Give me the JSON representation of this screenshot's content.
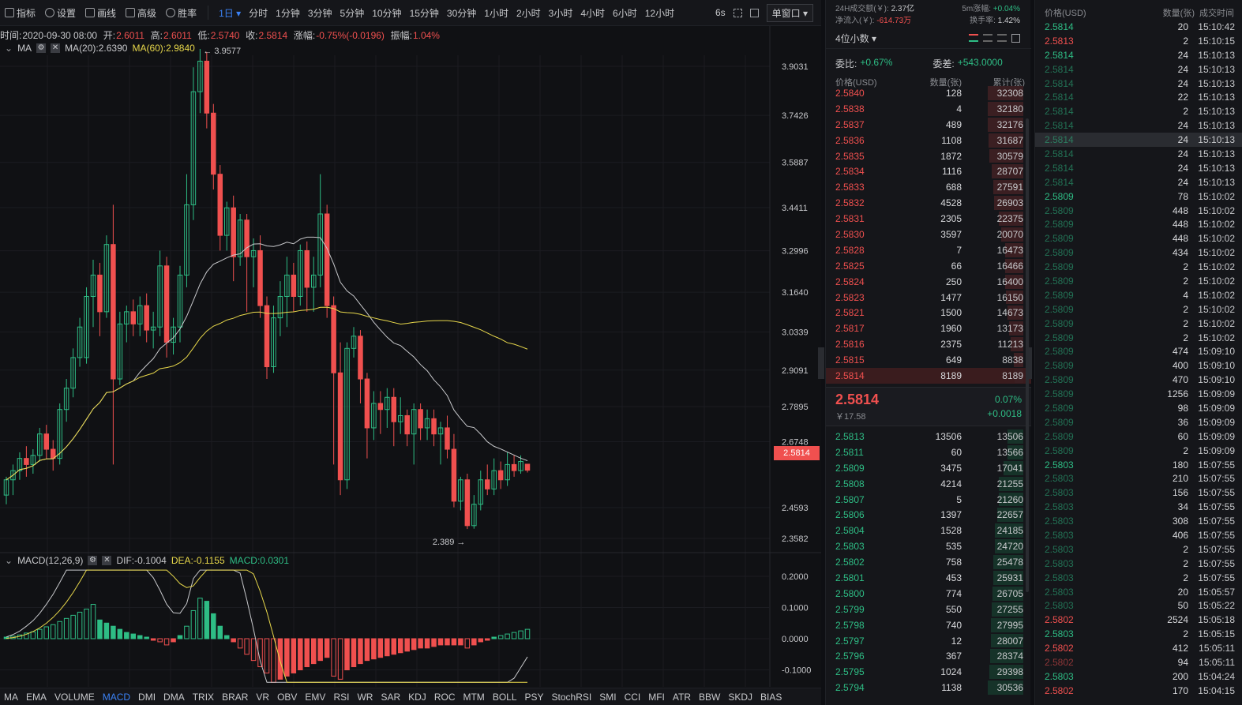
{
  "toolbar": {
    "indicator_label": "指标",
    "settings_label": "设置",
    "draw_label": "画线",
    "advanced_label": "高级",
    "winrate_label": "胜率",
    "intervals": [
      "1日",
      "分时",
      "1分钟",
      "3分钟",
      "5分钟",
      "10分钟",
      "15分钟",
      "30分钟",
      "1小时",
      "2小时",
      "3小时",
      "4小时",
      "6小时",
      "12小时"
    ],
    "active_interval": "1日",
    "refresh_label": "6s",
    "window_select": "单窗口"
  },
  "info": {
    "time_label": "时间:",
    "time": "2020-09-30 08:00",
    "open_label": "开:",
    "open": "2.6011",
    "high_label": "高:",
    "high": "2.6011",
    "low_label": "低:",
    "low": "2.5740",
    "close_label": "收:",
    "close": "2.5814",
    "change_label": "涨幅:",
    "change": "-0.75%(-0.0196)",
    "amplitude_label": "振幅:",
    "amplitude": "1.04%"
  },
  "ma": {
    "label": "MA",
    "ma20": "MA(20):2.6390",
    "ma60": "MA(60):2.9840"
  },
  "macd": {
    "label": "MACD(12,26,9)",
    "dif": "DIF:-0.1004",
    "dea": "DEA:-0.1155",
    "macd": "MACD:0.0301"
  },
  "chart_data": {
    "type": "candlestick",
    "y_ticks": [
      "3.9031",
      "3.7426",
      "3.5887",
      "3.4411",
      "3.2996",
      "3.1640",
      "3.0339",
      "2.9091",
      "2.7895",
      "2.6748",
      "2.4593",
      "2.3582"
    ],
    "high_marker": "3.9577",
    "low_marker": "2.389",
    "current_price": "2.5814",
    "macd_ticks": [
      "0.2000",
      "0.1000",
      "0.0000",
      "-0.1000"
    ],
    "candles": [
      [
        2.5,
        2.55,
        2.47,
        2.56
      ],
      [
        2.55,
        2.58,
        2.5,
        2.6
      ],
      [
        2.58,
        2.62,
        2.55,
        2.64
      ],
      [
        2.62,
        2.6,
        2.56,
        2.66
      ],
      [
        2.6,
        2.63,
        2.57,
        2.65
      ],
      [
        2.63,
        2.7,
        2.61,
        2.72
      ],
      [
        2.7,
        2.65,
        2.62,
        2.73
      ],
      [
        2.65,
        2.62,
        2.58,
        2.68
      ],
      [
        2.62,
        2.78,
        2.6,
        2.8
      ],
      [
        2.78,
        2.85,
        2.74,
        2.88
      ],
      [
        2.85,
        2.95,
        2.82,
        2.98
      ],
      [
        2.95,
        3.05,
        2.92,
        3.08
      ],
      [
        2.95,
        3.15,
        2.93,
        3.18
      ],
      [
        3.15,
        3.22,
        3.05,
        3.27
      ],
      [
        3.22,
        3.1,
        3.02,
        3.26
      ],
      [
        3.1,
        3.32,
        3.08,
        3.35
      ],
      [
        3.32,
        2.88,
        2.6,
        3.45
      ],
      [
        2.88,
        3.06,
        2.86,
        3.1
      ],
      [
        3.06,
        3.1,
        3.0,
        3.12
      ],
      [
        3.1,
        3.06,
        3.02,
        3.14
      ],
      [
        3.06,
        3.12,
        3.02,
        3.15
      ],
      [
        3.12,
        3.04,
        3.0,
        3.16
      ],
      [
        3.04,
        3.05,
        2.98,
        3.1
      ],
      [
        3.05,
        3.25,
        3.02,
        3.3
      ],
      [
        3.25,
        3.0,
        2.95,
        3.28
      ],
      [
        3.0,
        3.05,
        2.96,
        3.08
      ],
      [
        3.05,
        3.22,
        3.0,
        3.25
      ],
      [
        3.22,
        3.45,
        3.18,
        3.55
      ],
      [
        3.45,
        3.82,
        3.4,
        3.9
      ],
      [
        3.82,
        3.92,
        3.75,
        3.96
      ],
      [
        3.92,
        3.75,
        3.7,
        3.95
      ],
      [
        3.75,
        3.55,
        3.5,
        3.78
      ],
      [
        3.55,
        3.35,
        3.3,
        3.58
      ],
      [
        3.35,
        3.44,
        3.3,
        3.46
      ],
      [
        3.44,
        3.28,
        3.2,
        3.48
      ],
      [
        3.28,
        3.4,
        3.25,
        3.42
      ],
      [
        3.4,
        3.28,
        3.1,
        3.42
      ],
      [
        3.28,
        3.3,
        3.18,
        3.34
      ],
      [
        3.3,
        3.12,
        3.08,
        3.35
      ],
      [
        3.12,
        2.92,
        2.88,
        3.15
      ],
      [
        2.92,
        3.08,
        2.9,
        3.12
      ],
      [
        3.08,
        3.15,
        3.02,
        3.2
      ],
      [
        3.15,
        3.22,
        3.05,
        3.28
      ],
      [
        3.22,
        3.15,
        3.1,
        3.26
      ],
      [
        3.15,
        3.3,
        3.12,
        3.32
      ],
      [
        3.3,
        3.18,
        3.1,
        3.33
      ],
      [
        3.18,
        3.22,
        3.1,
        3.28
      ],
      [
        3.22,
        3.42,
        3.18,
        3.55
      ],
      [
        3.42,
        3.12,
        3.08,
        3.45
      ],
      [
        3.12,
        2.9,
        2.6,
        3.15
      ],
      [
        2.9,
        2.55,
        2.5,
        3.0
      ],
      [
        2.55,
        2.98,
        2.52,
        3.0
      ],
      [
        2.98,
        3.02,
        2.95,
        3.05
      ],
      [
        3.02,
        2.88,
        2.8,
        3.04
      ],
      [
        2.88,
        2.72,
        2.62,
        2.9
      ],
      [
        2.72,
        2.8,
        2.68,
        2.84
      ],
      [
        2.8,
        2.78,
        2.7,
        2.84
      ],
      [
        2.78,
        2.82,
        2.72,
        2.85
      ],
      [
        2.82,
        2.74,
        2.66,
        2.85
      ],
      [
        2.74,
        2.76,
        2.7,
        2.82
      ],
      [
        2.76,
        2.7,
        2.66,
        2.78
      ],
      [
        2.7,
        2.78,
        2.6,
        2.8
      ],
      [
        2.78,
        2.72,
        2.68,
        2.8
      ],
      [
        2.72,
        2.75,
        2.68,
        2.78
      ],
      [
        2.75,
        2.7,
        2.66,
        2.78
      ],
      [
        2.7,
        2.72,
        2.6,
        2.74
      ],
      [
        2.72,
        2.65,
        2.62,
        2.76
      ],
      [
        2.65,
        2.48,
        2.46,
        2.7
      ],
      [
        2.48,
        2.55,
        2.45,
        2.56
      ],
      [
        2.55,
        2.4,
        2.389,
        2.57
      ],
      [
        2.4,
        2.47,
        2.39,
        2.5
      ],
      [
        2.47,
        2.55,
        2.45,
        2.58
      ],
      [
        2.55,
        2.52,
        2.5,
        2.6
      ],
      [
        2.52,
        2.58,
        2.5,
        2.62
      ],
      [
        2.58,
        2.55,
        2.52,
        2.61
      ],
      [
        2.55,
        2.6,
        2.53,
        2.64
      ],
      [
        2.6,
        2.58,
        2.56,
        2.63
      ],
      [
        2.58,
        2.61,
        2.57,
        2.63
      ],
      [
        2.6011,
        2.5814,
        2.574,
        2.6011
      ]
    ],
    "macd_hist": [
      0.005,
      0.008,
      0.012,
      0.018,
      0.022,
      0.03,
      0.038,
      0.045,
      0.055,
      0.065,
      0.075,
      0.085,
      0.095,
      0.11,
      0.06,
      0.05,
      0.04,
      0.03,
      0.02,
      0.015,
      0.01,
      0.005,
      -0.005,
      -0.01,
      -0.02,
      -0.01,
      0.01,
      0.04,
      0.09,
      0.13,
      0.12,
      0.08,
      0.04,
      0.01,
      -0.01,
      -0.03,
      -0.05,
      -0.07,
      -0.09,
      -0.11,
      -0.14,
      -0.13,
      -0.12,
      -0.11,
      -0.1,
      -0.09,
      -0.08,
      -0.07,
      -0.06,
      -0.12,
      -0.13,
      -0.1,
      -0.09,
      -0.08,
      -0.07,
      -0.065,
      -0.06,
      -0.055,
      -0.05,
      -0.045,
      -0.04,
      -0.035,
      -0.03,
      -0.03,
      -0.025,
      -0.02,
      -0.02,
      -0.02,
      -0.02,
      -0.03,
      -0.02,
      -0.01,
      -0.005,
      0.005,
      0.01,
      0.015,
      0.02,
      0.025,
      0.0301
    ]
  },
  "orderbook": {
    "vol24h_label": "24H成交额(￥):",
    "vol24h": "2.37亿",
    "inflow_label": "净流入(￥):",
    "inflow": "-614.73万",
    "rise5m_label": "5m涨幅:",
    "rise5m": "+0.04%",
    "turnover_label": "换手率:",
    "turnover": "1.42%",
    "decimals": "4位小数",
    "ratio_label": "委比:",
    "ratio": "+0.67%",
    "diff_label": "委差:",
    "diff": "+543.0000",
    "head_price": "价格(USD)",
    "head_qty": "数量(张)",
    "head_cum": "累计(张)",
    "asks": [
      [
        "2.5840",
        "128",
        "32308"
      ],
      [
        "2.5838",
        "4",
        "32180"
      ],
      [
        "2.5837",
        "489",
        "32176"
      ],
      [
        "2.5836",
        "1108",
        "31687"
      ],
      [
        "2.5835",
        "1872",
        "30579"
      ],
      [
        "2.5834",
        "1116",
        "28707"
      ],
      [
        "2.5833",
        "688",
        "27591"
      ],
      [
        "2.5832",
        "4528",
        "26903"
      ],
      [
        "2.5831",
        "2305",
        "22375"
      ],
      [
        "2.5830",
        "3597",
        "20070"
      ],
      [
        "2.5828",
        "7",
        "16473"
      ],
      [
        "2.5825",
        "66",
        "16466"
      ],
      [
        "2.5824",
        "250",
        "16400"
      ],
      [
        "2.5823",
        "1477",
        "16150"
      ],
      [
        "2.5821",
        "1500",
        "14673"
      ],
      [
        "2.5817",
        "1960",
        "13173"
      ],
      [
        "2.5816",
        "2375",
        "11213"
      ],
      [
        "2.5815",
        "649",
        "8838"
      ],
      [
        "2.5814",
        "8189",
        "8189"
      ]
    ],
    "last_price": "2.5814",
    "last_cny": "￥17.58",
    "last_pct": "0.07%",
    "last_chg": "+0.0018",
    "bids": [
      [
        "2.5813",
        "13506",
        "13506"
      ],
      [
        "2.5811",
        "60",
        "13566"
      ],
      [
        "2.5809",
        "3475",
        "17041"
      ],
      [
        "2.5808",
        "4214",
        "21255"
      ],
      [
        "2.5807",
        "5",
        "21260"
      ],
      [
        "2.5806",
        "1397",
        "22657"
      ],
      [
        "2.5804",
        "1528",
        "24185"
      ],
      [
        "2.5803",
        "535",
        "24720"
      ],
      [
        "2.5802",
        "758",
        "25478"
      ],
      [
        "2.5801",
        "453",
        "25931"
      ],
      [
        "2.5800",
        "774",
        "26705"
      ],
      [
        "2.5799",
        "550",
        "27255"
      ],
      [
        "2.5798",
        "740",
        "27995"
      ],
      [
        "2.5797",
        "12",
        "28007"
      ],
      [
        "2.5796",
        "367",
        "28374"
      ],
      [
        "2.5795",
        "1024",
        "29398"
      ],
      [
        "2.5794",
        "1138",
        "30536"
      ]
    ]
  },
  "trades": {
    "head_price": "价格(USD)",
    "head_qty": "数量(张)",
    "head_time": "成交时间",
    "rows": [
      [
        "2.5814",
        "20",
        "15:10:42",
        "g"
      ],
      [
        "2.5813",
        "2",
        "15:10:15",
        "r"
      ],
      [
        "2.5814",
        "24",
        "15:10:13",
        "g"
      ],
      [
        "2.5814",
        "24",
        "15:10:13",
        "gd"
      ],
      [
        "2.5814",
        "24",
        "15:10:13",
        "gd"
      ],
      [
        "2.5814",
        "22",
        "15:10:13",
        "gd"
      ],
      [
        "2.5814",
        "2",
        "15:10:13",
        "gd"
      ],
      [
        "2.5814",
        "24",
        "15:10:13",
        "gd"
      ],
      [
        "2.5814",
        "24",
        "15:10:13",
        "gds"
      ],
      [
        "2.5814",
        "24",
        "15:10:13",
        "gd"
      ],
      [
        "2.5814",
        "24",
        "15:10:13",
        "gd"
      ],
      [
        "2.5814",
        "24",
        "15:10:13",
        "gd"
      ],
      [
        "2.5809",
        "78",
        "15:10:02",
        "g"
      ],
      [
        "2.5809",
        "448",
        "15:10:02",
        "gd"
      ],
      [
        "2.5809",
        "448",
        "15:10:02",
        "gd"
      ],
      [
        "2.5809",
        "448",
        "15:10:02",
        "gd"
      ],
      [
        "2.5809",
        "434",
        "15:10:02",
        "gd"
      ],
      [
        "2.5809",
        "2",
        "15:10:02",
        "gd"
      ],
      [
        "2.5809",
        "2",
        "15:10:02",
        "gd"
      ],
      [
        "2.5809",
        "4",
        "15:10:02",
        "gd"
      ],
      [
        "2.5809",
        "2",
        "15:10:02",
        "gd"
      ],
      [
        "2.5809",
        "2",
        "15:10:02",
        "gd"
      ],
      [
        "2.5809",
        "2",
        "15:10:02",
        "gd"
      ],
      [
        "2.5809",
        "474",
        "15:09:10",
        "gd"
      ],
      [
        "2.5809",
        "400",
        "15:09:10",
        "gd"
      ],
      [
        "2.5809",
        "470",
        "15:09:10",
        "gd"
      ],
      [
        "2.5809",
        "1256",
        "15:09:09",
        "gd"
      ],
      [
        "2.5809",
        "98",
        "15:09:09",
        "gd"
      ],
      [
        "2.5809",
        "36",
        "15:09:09",
        "gd"
      ],
      [
        "2.5809",
        "60",
        "15:09:09",
        "gd"
      ],
      [
        "2.5809",
        "2",
        "15:09:09",
        "gd"
      ],
      [
        "2.5803",
        "180",
        "15:07:55",
        "g"
      ],
      [
        "2.5803",
        "210",
        "15:07:55",
        "gd"
      ],
      [
        "2.5803",
        "156",
        "15:07:55",
        "gd"
      ],
      [
        "2.5803",
        "34",
        "15:07:55",
        "gd"
      ],
      [
        "2.5803",
        "308",
        "15:07:55",
        "gd"
      ],
      [
        "2.5803",
        "406",
        "15:07:55",
        "gd"
      ],
      [
        "2.5803",
        "2",
        "15:07:55",
        "gd"
      ],
      [
        "2.5803",
        "2",
        "15:07:55",
        "gd"
      ],
      [
        "2.5803",
        "2",
        "15:07:55",
        "gd"
      ],
      [
        "2.5803",
        "20",
        "15:05:57",
        "gd"
      ],
      [
        "2.5803",
        "50",
        "15:05:22",
        "gd"
      ],
      [
        "2.5802",
        "2524",
        "15:05:18",
        "r"
      ],
      [
        "2.5803",
        "2",
        "15:05:15",
        "g"
      ],
      [
        "2.5802",
        "412",
        "15:05:11",
        "r"
      ],
      [
        "2.5802",
        "94",
        "15:05:11",
        "rd"
      ],
      [
        "2.5803",
        "200",
        "15:04:24",
        "g"
      ],
      [
        "2.5802",
        "170",
        "15:04:15",
        "r"
      ]
    ]
  },
  "bottom_tabs": [
    "MA",
    "EMA",
    "VOLUME",
    "MACD",
    "DMI",
    "DMA",
    "TRIX",
    "BRAR",
    "VR",
    "OBV",
    "EMV",
    "RSI",
    "WR",
    "SAR",
    "KDJ",
    "ROC",
    "MTM",
    "BOLL",
    "PSY",
    "StochRSI",
    "SMI",
    "CCI",
    "MFI",
    "ATR",
    "BBW",
    "SKDJ",
    "BIAS"
  ],
  "active_tab": "MACD",
  "colors": {
    "up": "#2ebd85",
    "down": "#f0504f",
    "ma20": "#c8c9cc",
    "ma60": "#e8d84b",
    "accent": "#3b82f6"
  }
}
